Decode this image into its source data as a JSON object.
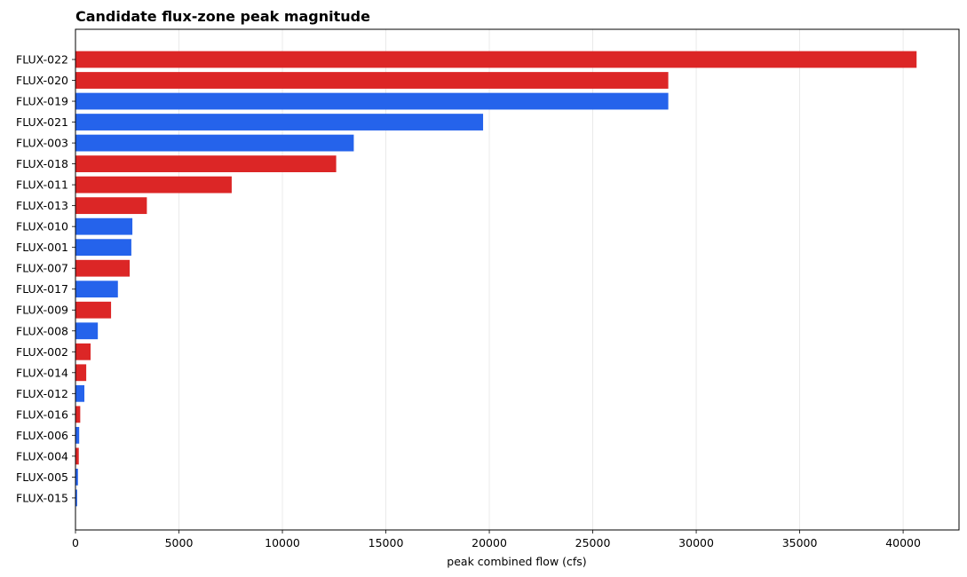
{
  "chart_data": {
    "type": "bar",
    "orientation": "horizontal",
    "title": "Candidate flux-zone peak magnitude",
    "xlabel": "peak combined flow (cfs)",
    "ylabel": "",
    "xlim": [
      0,
      42700
    ],
    "xticks": [
      0,
      5000,
      10000,
      15000,
      20000,
      25000,
      30000,
      35000,
      40000
    ],
    "xtick_labels": [
      "0",
      "5000",
      "10000",
      "15000",
      "20000",
      "25000",
      "30000",
      "35000",
      "40000"
    ],
    "grid": "x-axis vertical gridlines",
    "legend": "none",
    "colors": {
      "red": "#dc2626",
      "blue": "#2563eb"
    },
    "bars": [
      {
        "category": "FLUX-022",
        "value": 40650,
        "color": "red"
      },
      {
        "category": "FLUX-020",
        "value": 28650,
        "color": "red"
      },
      {
        "category": "FLUX-019",
        "value": 28650,
        "color": "blue"
      },
      {
        "category": "FLUX-021",
        "value": 19700,
        "color": "blue"
      },
      {
        "category": "FLUX-003",
        "value": 13450,
        "color": "blue"
      },
      {
        "category": "FLUX-018",
        "value": 12600,
        "color": "red"
      },
      {
        "category": "FLUX-011",
        "value": 7550,
        "color": "red"
      },
      {
        "category": "FLUX-013",
        "value": 3450,
        "color": "red"
      },
      {
        "category": "FLUX-010",
        "value": 2750,
        "color": "blue"
      },
      {
        "category": "FLUX-001",
        "value": 2700,
        "color": "blue"
      },
      {
        "category": "FLUX-007",
        "value": 2620,
        "color": "red"
      },
      {
        "category": "FLUX-017",
        "value": 2050,
        "color": "blue"
      },
      {
        "category": "FLUX-009",
        "value": 1720,
        "color": "red"
      },
      {
        "category": "FLUX-008",
        "value": 1080,
        "color": "blue"
      },
      {
        "category": "FLUX-002",
        "value": 730,
        "color": "red"
      },
      {
        "category": "FLUX-014",
        "value": 520,
        "color": "red"
      },
      {
        "category": "FLUX-012",
        "value": 430,
        "color": "blue"
      },
      {
        "category": "FLUX-016",
        "value": 230,
        "color": "red"
      },
      {
        "category": "FLUX-006",
        "value": 180,
        "color": "blue"
      },
      {
        "category": "FLUX-004",
        "value": 160,
        "color": "red"
      },
      {
        "category": "FLUX-005",
        "value": 120,
        "color": "blue"
      },
      {
        "category": "FLUX-015",
        "value": 80,
        "color": "blue"
      }
    ]
  }
}
